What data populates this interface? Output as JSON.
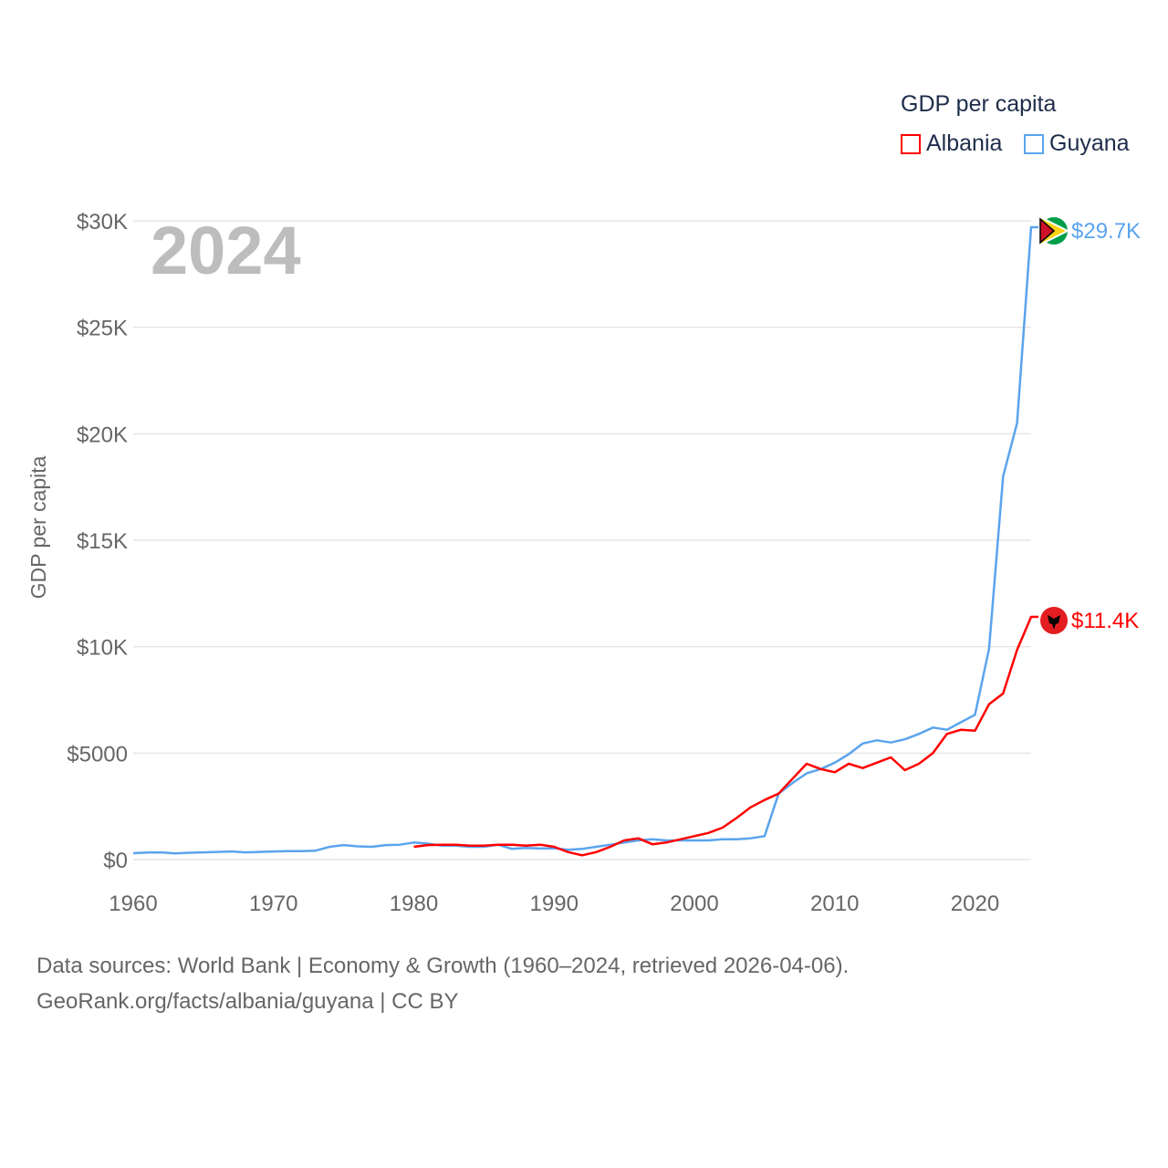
{
  "chart_data": {
    "type": "line",
    "title": "GDP per capita",
    "ylabel": "GDP per capita",
    "xlabel": "",
    "year_label": "2024",
    "xlim": [
      1960,
      2024
    ],
    "ylim": [
      0,
      30000
    ],
    "x_ticks": [
      1960,
      1970,
      1980,
      1990,
      2000,
      2010,
      2020
    ],
    "x_tick_labels": [
      "1960",
      "1970",
      "1980",
      "1990",
      "2000",
      "2010",
      "2020"
    ],
    "y_ticks": [
      0,
      5000,
      10000,
      15000,
      20000,
      25000,
      30000
    ],
    "y_tick_labels": [
      "$0",
      "$5000",
      "$10K",
      "$15K",
      "$20K",
      "$25K",
      "$30K"
    ],
    "grid": true,
    "legend_position": "top-right",
    "series": [
      {
        "name": "Albania",
        "color": "#ff0000",
        "end_label": "$11.4K",
        "flag": "albania-flag",
        "start_year": 1980,
        "values": [
          600,
          680,
          700,
          700,
          650,
          650,
          700,
          700,
          650,
          700,
          600,
          350,
          200,
          350,
          600,
          900,
          1000,
          720,
          800,
          950,
          1100,
          1250,
          1500,
          1950,
          2450,
          2800,
          3100,
          3800,
          4500,
          4250,
          4100,
          4500,
          4300,
          4550,
          4800,
          4200,
          4500,
          5000,
          5900,
          6100,
          6050,
          7300,
          7800,
          9850,
          11400
        ]
      },
      {
        "name": "Guyana",
        "color": "#5ba4ee",
        "end_label": "$29.7K",
        "flag": "guyana-flag",
        "start_year": 1960,
        "values": [
          300,
          330,
          340,
          290,
          320,
          340,
          360,
          380,
          340,
          360,
          380,
          400,
          400,
          420,
          600,
          680,
          620,
          600,
          680,
          700,
          800,
          750,
          650,
          650,
          600,
          600,
          700,
          500,
          550,
          520,
          530,
          460,
          500,
          600,
          700,
          800,
          900,
          950,
          900,
          900,
          900,
          900,
          950,
          950,
          1000,
          1100,
          3100,
          3600,
          4050,
          4250,
          4550,
          4950,
          5450,
          5600,
          5500,
          5650,
          5900,
          6200,
          6100,
          6450,
          6800,
          9900,
          18000,
          20500,
          29700
        ]
      }
    ]
  },
  "footer": {
    "line1": "Data sources: World Bank | Economy & Growth (1960–2024, retrieved 2026-04-06).",
    "line2": "GeoRank.org/facts/albania/guyana | CC BY"
  }
}
